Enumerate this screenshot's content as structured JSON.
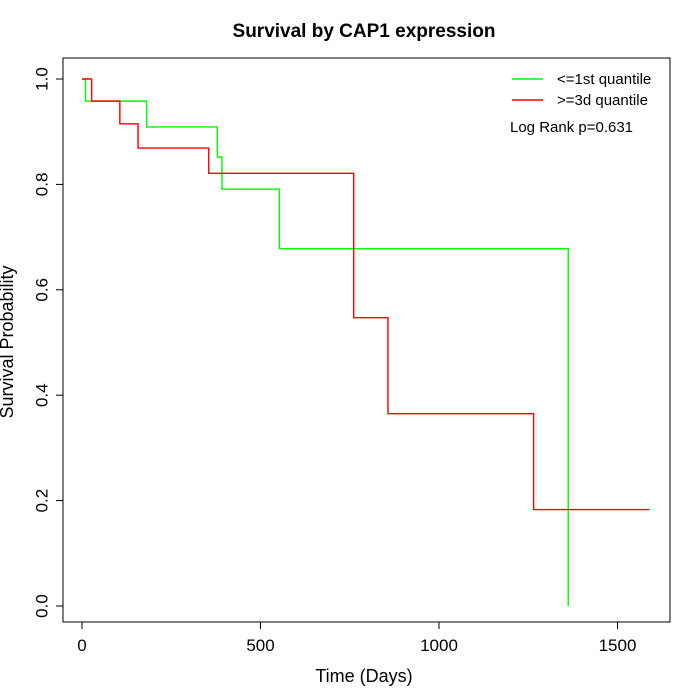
{
  "chart_data": {
    "type": "line",
    "step": true,
    "title": "Survival by CAP1 expression",
    "xlabel": "Time (Days)",
    "ylabel": "Survival Probability",
    "xlim": [
      0,
      1600
    ],
    "ylim": [
      0,
      1.0
    ],
    "xticks": [
      0,
      500,
      1000,
      1500
    ],
    "xtick_labels": [
      "0",
      "500",
      "1000",
      "1500"
    ],
    "yticks": [
      0.0,
      0.2,
      0.4,
      0.6,
      0.8,
      1.0
    ],
    "ytick_labels": [
      "0.0",
      "0.2",
      "0.4",
      "0.6",
      "0.8",
      "1.0"
    ],
    "grid": false,
    "legend_position": "top-right",
    "annotation": "Log Rank p=0.631",
    "series": [
      {
        "name": "<=1st quantile",
        "color": "#00ff00",
        "x": [
          0,
          10,
          181,
          379,
          392,
          553,
          1362,
          1362
        ],
        "y": [
          1.0,
          0.958,
          0.909,
          0.852,
          0.791,
          0.678,
          0.678,
          0.0
        ]
      },
      {
        "name": ">=3d quantile",
        "color": "#ff0000",
        "x": [
          0,
          27,
          106,
          157,
          355,
          761,
          857,
          1265,
          1590
        ],
        "y": [
          1.0,
          0.958,
          0.915,
          0.869,
          0.821,
          0.547,
          0.365,
          0.183,
          0.183
        ]
      }
    ]
  }
}
